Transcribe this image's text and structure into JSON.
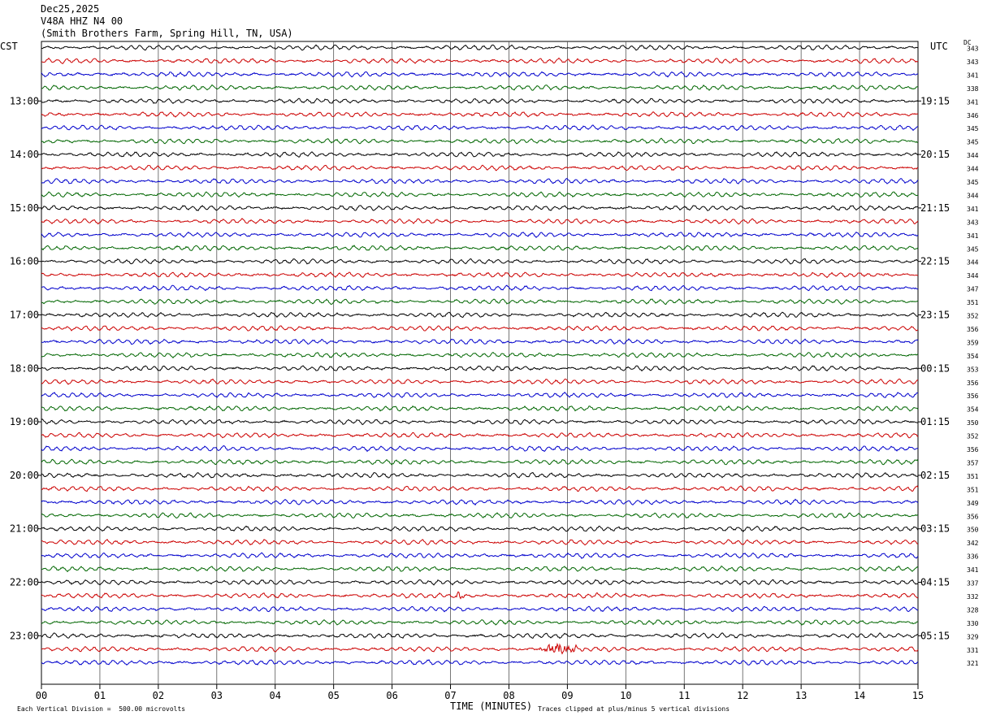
{
  "header": {
    "date": "Dec25,2025",
    "station": "V48A HHZ N4 00",
    "location": "(Smith Brothers Farm, Spring Hill, TN, USA)"
  },
  "left_zone": "CST",
  "right_zone": "UTC",
  "dc_label": "DC",
  "xlabel": "TIME (MINUTES)",
  "footer_left": "Each Vertical Division =  500.00 microvolts",
  "footer_right": "Traces clipped at plus/minus 5 vertical divisions",
  "chart_data": {
    "type": "line",
    "title": "Dec25,2025",
    "xlabel": "TIME (MINUTES)",
    "xlim": [
      0,
      15
    ],
    "x_ticks": [
      "00",
      "01",
      "02",
      "03",
      "04",
      "05",
      "06",
      "07",
      "08",
      "09",
      "10",
      "11",
      "12",
      "13",
      "14",
      "15"
    ],
    "grid": true,
    "trace_colors": [
      "#000000",
      "#cc0000",
      "#0000cc",
      "#006600"
    ],
    "left_hour_labels": [
      "13:00",
      "14:00",
      "15:00",
      "16:00",
      "17:00",
      "18:00",
      "19:00",
      "20:00",
      "21:00",
      "22:00",
      "23:00"
    ],
    "right_hour_labels": [
      "19:15",
      "20:15",
      "21:15",
      "22:15",
      "23:15",
      "00:15",
      "01:15",
      "02:15",
      "03:15",
      "04:15",
      "05:15"
    ],
    "dc_offsets": [
      343,
      343,
      341,
      338,
      341,
      346,
      345,
      345,
      344,
      344,
      345,
      344,
      341,
      343,
      341,
      345,
      344,
      344,
      347,
      351,
      352,
      356,
      359,
      354,
      353,
      356,
      356,
      354,
      350,
      352,
      356,
      357,
      351,
      351,
      349,
      356,
      350,
      342,
      336,
      341,
      337,
      332,
      328,
      330,
      329,
      331,
      321
    ],
    "events": [
      {
        "row": 41,
        "start_min": 7.05,
        "end_min": 7.35,
        "amplitude": 3.0
      },
      {
        "row": 45,
        "start_min": 8.45,
        "end_min": 9.3,
        "amplitude": 4.0
      }
    ]
  }
}
